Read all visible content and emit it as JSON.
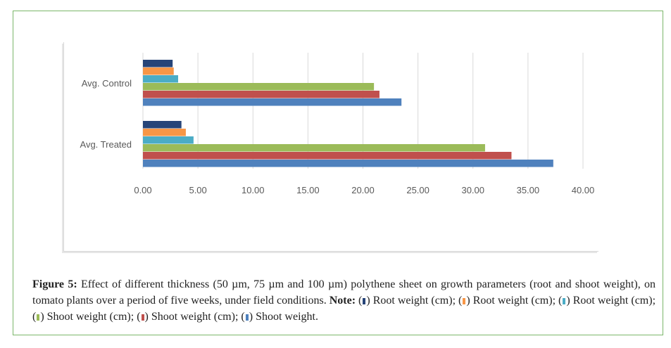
{
  "chart_data": {
    "type": "bar",
    "orientation": "horizontal",
    "categories": [
      "Avg. Control",
      "Avg. Treated"
    ],
    "series": [
      {
        "name": "Root weight (cm)",
        "color": "#264478",
        "values": [
          2.7,
          3.5
        ]
      },
      {
        "name": "Root weight (cm)",
        "color": "#f79646",
        "values": [
          2.8,
          3.9
        ]
      },
      {
        "name": "Root weight (cm)",
        "color": "#4bacc6",
        "values": [
          3.2,
          4.6
        ]
      },
      {
        "name": "Shoot weight (cm)",
        "color": "#9bbb59",
        "values": [
          21.0,
          31.1
        ]
      },
      {
        "name": "Shoot weight (cm)",
        "color": "#c0504d",
        "values": [
          21.5,
          33.5
        ]
      },
      {
        "name": "Shoot weight",
        "color": "#4f81bd",
        "values": [
          23.5,
          37.3
        ]
      }
    ],
    "xlim": [
      0,
      40
    ],
    "xticks": [
      "0.00",
      "5.00",
      "10.00",
      "15.00",
      "20.00",
      "25.00",
      "30.00",
      "35.00",
      "40.00"
    ],
    "grid": true,
    "title": "",
    "xlabel": "",
    "ylabel": ""
  },
  "caption": {
    "label": "Figure 5:",
    "text": " Effect of different thickness (50 µm, 75 µm and 100 µm) polythene sheet on growth parameters (root and shoot weight), on tomato plants over a period of five weeks, under field conditions. ",
    "note_label": "Note:",
    "legend": [
      " Root weight (cm); ",
      " Root weight (cm); ",
      " Root weight (cm); ",
      " Shoot weight (cm); ",
      " Shoot weight (cm); ",
      " Shoot weight."
    ]
  }
}
